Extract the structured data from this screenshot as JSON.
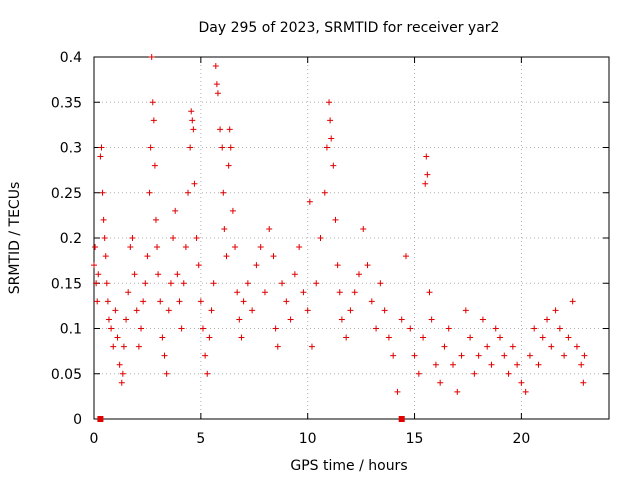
{
  "chart_data": {
    "type": "scatter",
    "title": "Day 295 of 2023, SRMTID for receiver yar2",
    "xlabel": "GPS time / hours",
    "ylabel": "SRMTID / TECUs",
    "xlim": [
      0,
      24.1
    ],
    "ylim": [
      0,
      0.4
    ],
    "grid": true,
    "marker": "+",
    "color": "#e00000",
    "x_ticks": [
      {
        "value": 0,
        "label": "0"
      },
      {
        "value": 5,
        "label": "5"
      },
      {
        "value": 10,
        "label": "10"
      },
      {
        "value": 15,
        "label": "15"
      },
      {
        "value": 20,
        "label": "20"
      }
    ],
    "y_ticks": [
      {
        "value": 0,
        "label": "0"
      },
      {
        "value": 0.05,
        "label": "0.05"
      },
      {
        "value": 0.1,
        "label": "0.1"
      },
      {
        "value": 0.15,
        "label": "0.15"
      },
      {
        "value": 0.2,
        "label": "0.2"
      },
      {
        "value": 0.25,
        "label": "0.25"
      },
      {
        "value": 0.3,
        "label": "0.3"
      },
      {
        "value": 0.35,
        "label": "0.35"
      },
      {
        "value": 0.4,
        "label": "0.4"
      }
    ],
    "series": [
      {
        "name": "SRMTID",
        "points": [
          [
            0.0,
            0.17
          ],
          [
            0.05,
            0.19
          ],
          [
            0.1,
            0.15
          ],
          [
            0.15,
            0.13
          ],
          [
            0.2,
            0.16
          ],
          [
            0.3,
            0.29
          ],
          [
            0.35,
            0.3
          ],
          [
            0.4,
            0.25
          ],
          [
            0.45,
            0.22
          ],
          [
            0.5,
            0.2
          ],
          [
            0.55,
            0.18
          ],
          [
            0.6,
            0.15
          ],
          [
            0.65,
            0.13
          ],
          [
            0.7,
            0.11
          ],
          [
            0.8,
            0.1
          ],
          [
            0.9,
            0.08
          ],
          [
            1.0,
            0.12
          ],
          [
            1.1,
            0.09
          ],
          [
            1.2,
            0.06
          ],
          [
            1.3,
            0.04
          ],
          [
            1.35,
            0.05
          ],
          [
            1.4,
            0.08
          ],
          [
            1.5,
            0.11
          ],
          [
            1.6,
            0.14
          ],
          [
            1.7,
            0.19
          ],
          [
            1.8,
            0.2
          ],
          [
            1.9,
            0.16
          ],
          [
            2.0,
            0.12
          ],
          [
            2.1,
            0.08
          ],
          [
            2.2,
            0.1
          ],
          [
            2.3,
            0.13
          ],
          [
            2.4,
            0.15
          ],
          [
            2.5,
            0.18
          ],
          [
            2.6,
            0.25
          ],
          [
            2.65,
            0.3
          ],
          [
            2.7,
            0.4
          ],
          [
            2.75,
            0.35
          ],
          [
            2.8,
            0.33
          ],
          [
            2.85,
            0.28
          ],
          [
            2.9,
            0.22
          ],
          [
            2.95,
            0.19
          ],
          [
            3.0,
            0.16
          ],
          [
            3.1,
            0.13
          ],
          [
            3.2,
            0.09
          ],
          [
            3.3,
            0.07
          ],
          [
            3.4,
            0.05
          ],
          [
            3.5,
            0.12
          ],
          [
            3.6,
            0.15
          ],
          [
            3.7,
            0.2
          ],
          [
            3.8,
            0.23
          ],
          [
            3.9,
            0.16
          ],
          [
            4.0,
            0.13
          ],
          [
            4.1,
            0.1
          ],
          [
            4.2,
            0.15
          ],
          [
            4.3,
            0.19
          ],
          [
            4.4,
            0.25
          ],
          [
            4.5,
            0.3
          ],
          [
            4.55,
            0.34
          ],
          [
            4.6,
            0.33
          ],
          [
            4.65,
            0.32
          ],
          [
            4.7,
            0.26
          ],
          [
            4.8,
            0.2
          ],
          [
            4.9,
            0.17
          ],
          [
            5.0,
            0.13
          ],
          [
            5.1,
            0.1
          ],
          [
            5.2,
            0.07
          ],
          [
            5.3,
            0.05
          ],
          [
            5.4,
            0.09
          ],
          [
            5.5,
            0.12
          ],
          [
            5.6,
            0.15
          ],
          [
            5.7,
            0.39
          ],
          [
            5.75,
            0.37
          ],
          [
            5.8,
            0.36
          ],
          [
            5.9,
            0.32
          ],
          [
            6.0,
            0.3
          ],
          [
            6.05,
            0.25
          ],
          [
            6.1,
            0.21
          ],
          [
            6.2,
            0.18
          ],
          [
            6.3,
            0.28
          ],
          [
            6.35,
            0.32
          ],
          [
            6.4,
            0.3
          ],
          [
            6.5,
            0.23
          ],
          [
            6.6,
            0.19
          ],
          [
            6.7,
            0.14
          ],
          [
            6.8,
            0.11
          ],
          [
            6.9,
            0.09
          ],
          [
            7.0,
            0.13
          ],
          [
            7.2,
            0.15
          ],
          [
            7.4,
            0.12
          ],
          [
            7.6,
            0.17
          ],
          [
            7.8,
            0.19
          ],
          [
            8.0,
            0.14
          ],
          [
            8.2,
            0.21
          ],
          [
            8.4,
            0.18
          ],
          [
            8.5,
            0.1
          ],
          [
            8.6,
            0.08
          ],
          [
            8.8,
            0.15
          ],
          [
            9.0,
            0.13
          ],
          [
            9.2,
            0.11
          ],
          [
            9.4,
            0.16
          ],
          [
            9.6,
            0.19
          ],
          [
            9.8,
            0.14
          ],
          [
            10.0,
            0.12
          ],
          [
            10.1,
            0.24
          ],
          [
            10.2,
            0.08
          ],
          [
            10.4,
            0.15
          ],
          [
            10.6,
            0.2
          ],
          [
            10.8,
            0.25
          ],
          [
            10.9,
            0.3
          ],
          [
            11.0,
            0.35
          ],
          [
            11.05,
            0.33
          ],
          [
            11.1,
            0.31
          ],
          [
            11.2,
            0.28
          ],
          [
            11.3,
            0.22
          ],
          [
            11.4,
            0.17
          ],
          [
            11.5,
            0.14
          ],
          [
            11.6,
            0.11
          ],
          [
            11.8,
            0.09
          ],
          [
            12.0,
            0.12
          ],
          [
            12.2,
            0.14
          ],
          [
            12.4,
            0.16
          ],
          [
            12.6,
            0.21
          ],
          [
            12.8,
            0.17
          ],
          [
            13.0,
            0.13
          ],
          [
            13.2,
            0.1
          ],
          [
            13.4,
            0.15
          ],
          [
            13.6,
            0.12
          ],
          [
            13.8,
            0.09
          ],
          [
            14.0,
            0.07
          ],
          [
            14.2,
            0.03
          ],
          [
            14.4,
            0.11
          ],
          [
            14.6,
            0.18
          ],
          [
            14.8,
            0.1
          ],
          [
            15.0,
            0.07
          ],
          [
            15.2,
            0.05
          ],
          [
            15.4,
            0.09
          ],
          [
            15.5,
            0.26
          ],
          [
            15.55,
            0.29
          ],
          [
            15.6,
            0.27
          ],
          [
            15.7,
            0.14
          ],
          [
            15.8,
            0.11
          ],
          [
            16.0,
            0.06
          ],
          [
            16.2,
            0.04
          ],
          [
            16.4,
            0.08
          ],
          [
            16.6,
            0.1
          ],
          [
            16.8,
            0.06
          ],
          [
            17.0,
            0.03
          ],
          [
            17.2,
            0.07
          ],
          [
            17.4,
            0.12
          ],
          [
            17.6,
            0.09
          ],
          [
            17.8,
            0.05
          ],
          [
            18.0,
            0.07
          ],
          [
            18.2,
            0.11
          ],
          [
            18.4,
            0.08
          ],
          [
            18.6,
            0.06
          ],
          [
            18.8,
            0.1
          ],
          [
            19.0,
            0.09
          ],
          [
            19.2,
            0.07
          ],
          [
            19.4,
            0.05
          ],
          [
            19.6,
            0.08
          ],
          [
            19.8,
            0.06
          ],
          [
            20.0,
            0.04
          ],
          [
            20.2,
            0.03
          ],
          [
            20.4,
            0.07
          ],
          [
            20.6,
            0.1
          ],
          [
            20.8,
            0.06
          ],
          [
            21.0,
            0.09
          ],
          [
            21.2,
            0.11
          ],
          [
            21.4,
            0.08
          ],
          [
            21.6,
            0.12
          ],
          [
            21.8,
            0.1
          ],
          [
            22.0,
            0.07
          ],
          [
            22.2,
            0.09
          ],
          [
            22.4,
            0.13
          ],
          [
            22.6,
            0.08
          ],
          [
            22.8,
            0.06
          ],
          [
            22.9,
            0.04
          ],
          [
            22.95,
            0.07
          ],
          [
            0.3,
            0.0
          ],
          [
            14.4,
            0.0
          ]
        ]
      }
    ]
  }
}
